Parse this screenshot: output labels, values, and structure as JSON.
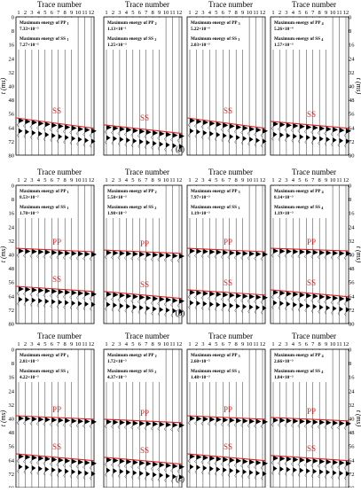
{
  "figure": {
    "axis_title_x": "Trace number",
    "axis_title_y": "t (ms)",
    "trace_labels": [
      "1",
      "2",
      "3",
      "4",
      "5",
      "6",
      "7",
      "8",
      "9",
      "10",
      "11",
      "12"
    ],
    "y_ticks": [
      "0",
      "8",
      "16",
      "24",
      "32",
      "40",
      "48",
      "56",
      "64",
      "72",
      "80"
    ],
    "energy_pp_label": "Maximum energy of PP",
    "energy_ss_label": "Maximum energy of SS",
    "wave_pp": "PP",
    "wave_ss": "SS",
    "colors": {
      "pick_line": "#e02020",
      "label": "#e02020",
      "trace": "#000000"
    },
    "rows": [
      {
        "caption": "(a)",
        "panels": [
          {
            "pp_value": "7.33×10⁻³",
            "ss_value": "7.27×10⁻³",
            "show_pp": false,
            "pp_sub": "1",
            "ss_sub": "1"
          },
          {
            "pp_value": "1.13×10⁻¹",
            "ss_value": "1.25×10⁻³",
            "show_pp": false,
            "pp_sub": "2",
            "ss_sub": "2"
          },
          {
            "pp_value": "5.22×10⁻⁴",
            "ss_value": "2.03×10⁻³",
            "show_pp": false,
            "pp_sub": "3",
            "ss_sub": "3"
          },
          {
            "pp_value": "5.26×10⁻⁴",
            "ss_value": "1.57×10⁻³",
            "show_pp": false,
            "pp_sub": "4",
            "ss_sub": "4"
          }
        ]
      },
      {
        "caption": "(b)",
        "panels": [
          {
            "pp_value": "8.53×10⁻³",
            "ss_value": "1.70×10⁻³",
            "show_pp": true,
            "pp_sub": "1",
            "ss_sub": "1"
          },
          {
            "pp_value": "5.50×10⁻³",
            "ss_value": "1.98×10⁻³",
            "show_pp": true,
            "pp_sub": "2",
            "ss_sub": "2"
          },
          {
            "pp_value": "7.97×10⁻³",
            "ss_value": "1.19×10⁻³",
            "show_pp": true,
            "pp_sub": "3",
            "ss_sub": "3"
          },
          {
            "pp_value": "8.14×10⁻³",
            "ss_value": "1.19×10⁻³",
            "show_pp": true,
            "pp_sub": "4",
            "ss_sub": "4"
          }
        ]
      },
      {
        "caption": "(c)",
        "panels": [
          {
            "pp_value": "2.81×10⁻³",
            "ss_value": "4.22×10⁻³",
            "show_pp": true,
            "pp_sub": "1",
            "ss_sub": "1"
          },
          {
            "pp_value": "1.72×10⁻³",
            "ss_value": "4.37×10⁻³",
            "show_pp": true,
            "pp_sub": "2",
            "ss_sub": "2"
          },
          {
            "pp_value": "2.60×10⁻³",
            "ss_value": "1.48×10⁻³",
            "show_pp": true,
            "pp_sub": "3",
            "ss_sub": "3"
          },
          {
            "pp_value": "2.66×10⁻³",
            "ss_value": "1.84×10⁻³",
            "show_pp": true,
            "pp_sub": "4",
            "ss_sub": "4"
          }
        ]
      }
    ]
  }
}
